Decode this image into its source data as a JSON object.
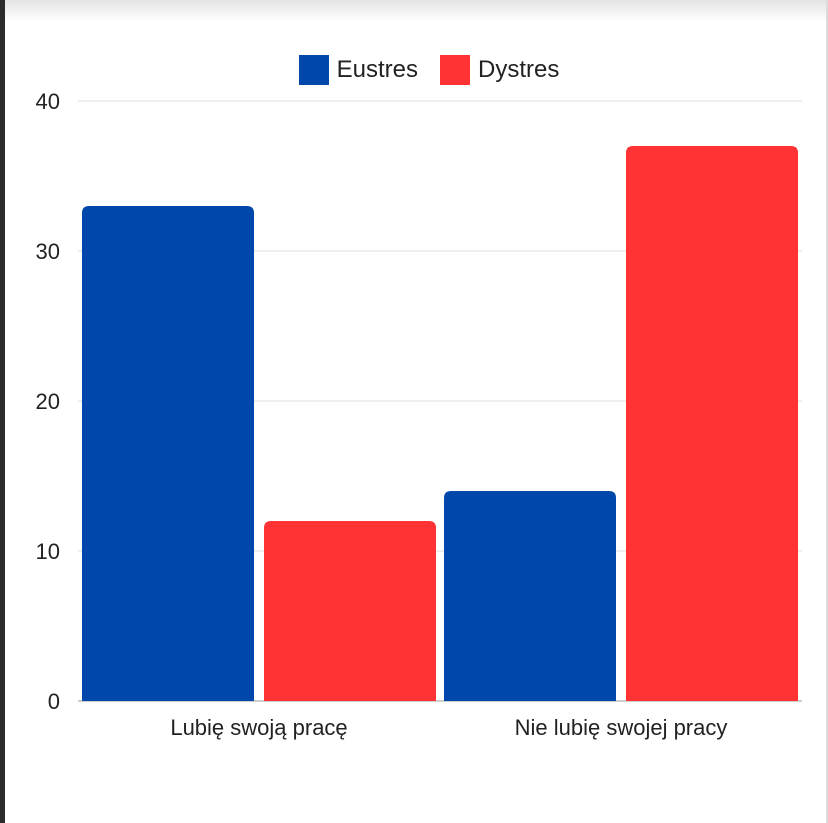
{
  "chart_data": {
    "type": "bar",
    "categories": [
      "Lubię swoją pracę",
      "Nie lubię swojej pracy"
    ],
    "series": [
      {
        "name": "Eustres",
        "values": [
          33,
          14
        ],
        "color": "#0047AB"
      },
      {
        "name": "Dystres",
        "values": [
          12,
          37
        ],
        "color": "#FF3333"
      }
    ],
    "yticks": [
      0,
      10,
      20,
      30,
      40
    ],
    "ylim": [
      0,
      40
    ],
    "grid": true,
    "legend_position": "top-center"
  }
}
